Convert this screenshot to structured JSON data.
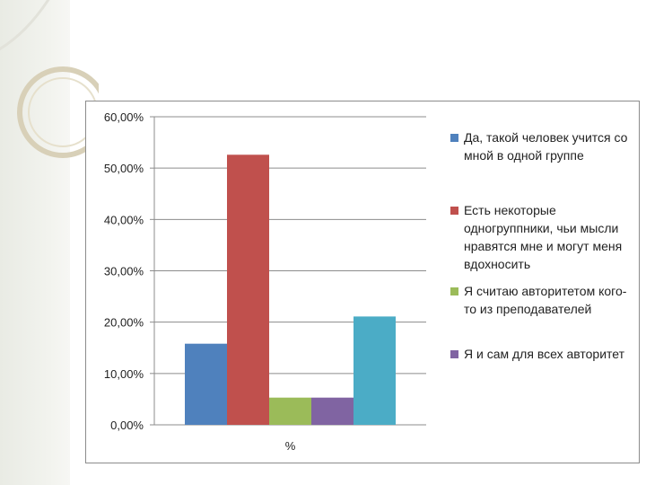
{
  "chart_data": {
    "type": "bar",
    "categories": [
      "%"
    ],
    "series": [
      {
        "name": "Да, такой человек учится со мной в одной группе",
        "values": [
          15.8
        ],
        "color": "#4f81bd"
      },
      {
        "name": "Есть некоторые одногруппники, чьи мысли нравятся мне и могут меня вдохносить",
        "values": [
          52.6
        ],
        "color": "#c0504d"
      },
      {
        "name": "Я считаю авторитетом кого-то из преподавателей",
        "values": [
          5.3
        ],
        "color": "#9bbb59"
      },
      {
        "name": "Я и сам для всех авторитет",
        "values": [
          5.3
        ],
        "color": "#8064a2"
      },
      {
        "name": "",
        "values": [
          21.1
        ],
        "color": "#4bacc6"
      }
    ],
    "ylim": [
      0,
      60
    ],
    "yticks": [
      0,
      10,
      20,
      30,
      40,
      50,
      60
    ],
    "ytick_labels": [
      "0,00%",
      "10,00%",
      "20,00%",
      "30,00%",
      "40,00%",
      "50,00%",
      "60,00%"
    ],
    "grid": true,
    "legend_position": "right",
    "title": "",
    "xlabel": "",
    "ylabel": ""
  },
  "legend": {
    "items": [
      {
        "label": "Да, такой человек учится со мной в одной группе",
        "color": "#4f81bd"
      },
      {
        "label": "Есть некоторые одногруппники, чьи мысли нравятся мне и могут меня вдохносить",
        "color": "#c0504d"
      },
      {
        "label": "Я считаю авторитетом кого-то из преподавателей",
        "color": "#9bbb59"
      },
      {
        "label": "Я и сам для всех авторитет",
        "color": "#8064a2"
      }
    ]
  }
}
